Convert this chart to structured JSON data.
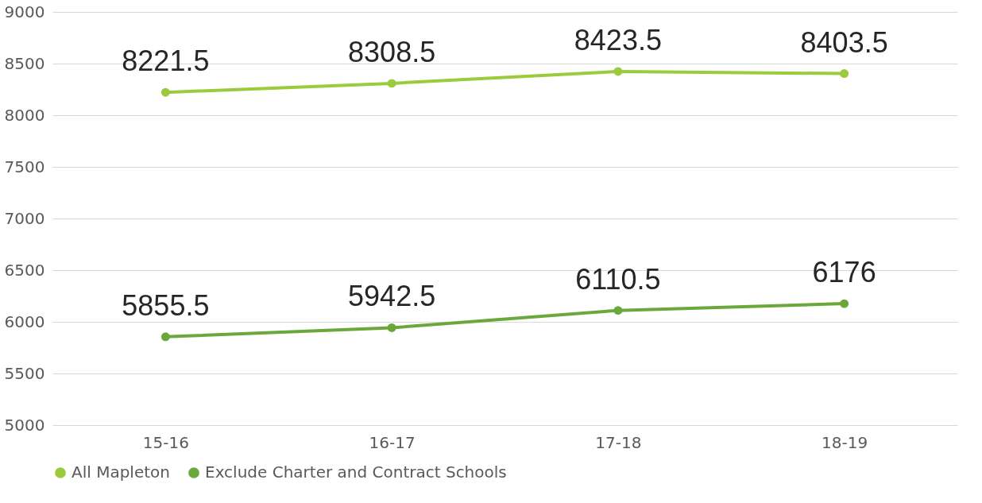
{
  "chart_data": {
    "type": "line",
    "categories": [
      "15-16",
      "16-17",
      "17-18",
      "18-19"
    ],
    "series": [
      {
        "name": "All Mapleton",
        "color": "#9bcb3c",
        "values": [
          8221.5,
          8308.5,
          8423.5,
          8403.5
        ]
      },
      {
        "name": "Exclude Charter and Contract Schools",
        "color": "#6aa83a",
        "values": [
          5855.5,
          5942.5,
          6110.5,
          6176
        ]
      }
    ],
    "ylim": [
      5000,
      9000
    ],
    "yticks": [
      5000,
      5500,
      6000,
      6500,
      7000,
      7500,
      8000,
      8500,
      9000
    ],
    "grid": "y",
    "legend": "bottom",
    "marker": "circle",
    "line_style": "solid",
    "data_labels": true
  }
}
